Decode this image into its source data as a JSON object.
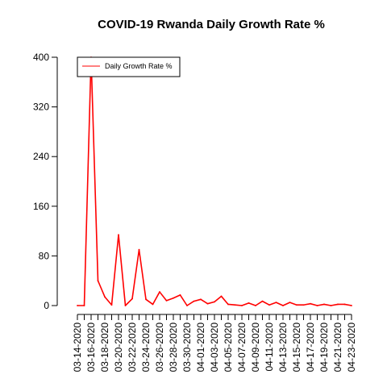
{
  "chart_data": {
    "type": "line",
    "title": "COVID-19 Rwanda Daily Growth Rate %",
    "xlabel": "",
    "ylabel": "",
    "ylim": [
      0,
      400
    ],
    "yticks": [
      0,
      80,
      160,
      240,
      320,
      400
    ],
    "legend_position": "top-left",
    "grid": false,
    "x": [
      "03-14-2020",
      "03-15-2020",
      "03-16-2020",
      "03-17-2020",
      "03-18-2020",
      "03-19-2020",
      "03-20-2020",
      "03-21-2020",
      "03-22-2020",
      "03-23-2020",
      "03-24-2020",
      "03-25-2020",
      "03-26-2020",
      "03-27-2020",
      "03-28-2020",
      "03-29-2020",
      "03-30-2020",
      "03-31-2020",
      "04-01-2020",
      "04-02-2020",
      "04-03-2020",
      "04-04-2020",
      "04-05-2020",
      "04-06-2020",
      "04-07-2020",
      "04-08-2020",
      "04-09-2020",
      "04-10-2020",
      "04-11-2020",
      "04-12-2020",
      "04-13-2020",
      "04-14-2020",
      "04-15-2020",
      "04-16-2020",
      "04-17-2020",
      "04-18-2020",
      "04-19-2020",
      "04-20-2020",
      "04-21-2020",
      "04-22-2020",
      "04-23-2020"
    ],
    "xtick_labels": [
      "03-14-2020",
      "03-16-2020",
      "03-18-2020",
      "03-20-2020",
      "03-22-2020",
      "03-24-2020",
      "03-26-2020",
      "03-28-2020",
      "03-30-2020",
      "04-01-2020",
      "04-03-2020",
      "04-05-2020",
      "04-07-2020",
      "04-09-2020",
      "04-11-2020",
      "04-13-2020",
      "04-15-2020",
      "04-17-2020",
      "04-19-2020",
      "04-21-2020",
      "04-23-2020"
    ],
    "series": [
      {
        "name": "Daily Growth Rate %",
        "color": "#ff0000",
        "values": [
          0,
          0,
          400,
          40,
          14,
          1,
          114,
          0,
          11,
          90,
          10,
          2,
          22,
          8,
          12,
          17,
          0,
          7,
          10,
          3,
          6,
          15,
          2,
          1,
          0,
          4,
          0,
          7,
          1,
          5,
          0,
          5,
          1,
          1,
          3,
          0,
          2,
          0,
          2,
          2,
          0
        ]
      }
    ]
  }
}
